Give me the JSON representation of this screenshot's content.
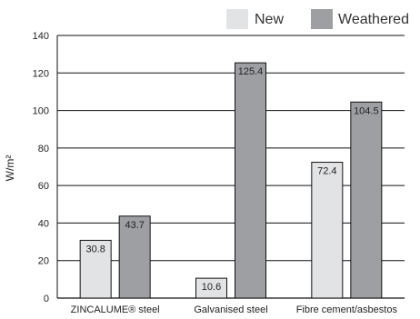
{
  "chart_data": {
    "type": "bar",
    "categories": [
      "ZINCALUME® steel",
      "Galvanised steel",
      "Fibre cement/asbestos"
    ],
    "series": [
      {
        "name": "New",
        "values": [
          30.8,
          10.6,
          72.4
        ],
        "color": "#e2e3e4"
      },
      {
        "name": "Weathered",
        "values": [
          43.7,
          125.4,
          104.5
        ],
        "color": "#9d9fa2"
      }
    ],
    "data_labels": [
      [
        "30.8",
        "43.7"
      ],
      [
        "10.6",
        "125.4"
      ],
      [
        "72.4",
        "104.5"
      ]
    ],
    "ylabel": "W/m²",
    "ylim": [
      0,
      140
    ],
    "yticks": [
      0,
      20,
      40,
      60,
      80,
      100,
      120,
      140
    ],
    "grid": true,
    "legend_position": "top-right"
  }
}
